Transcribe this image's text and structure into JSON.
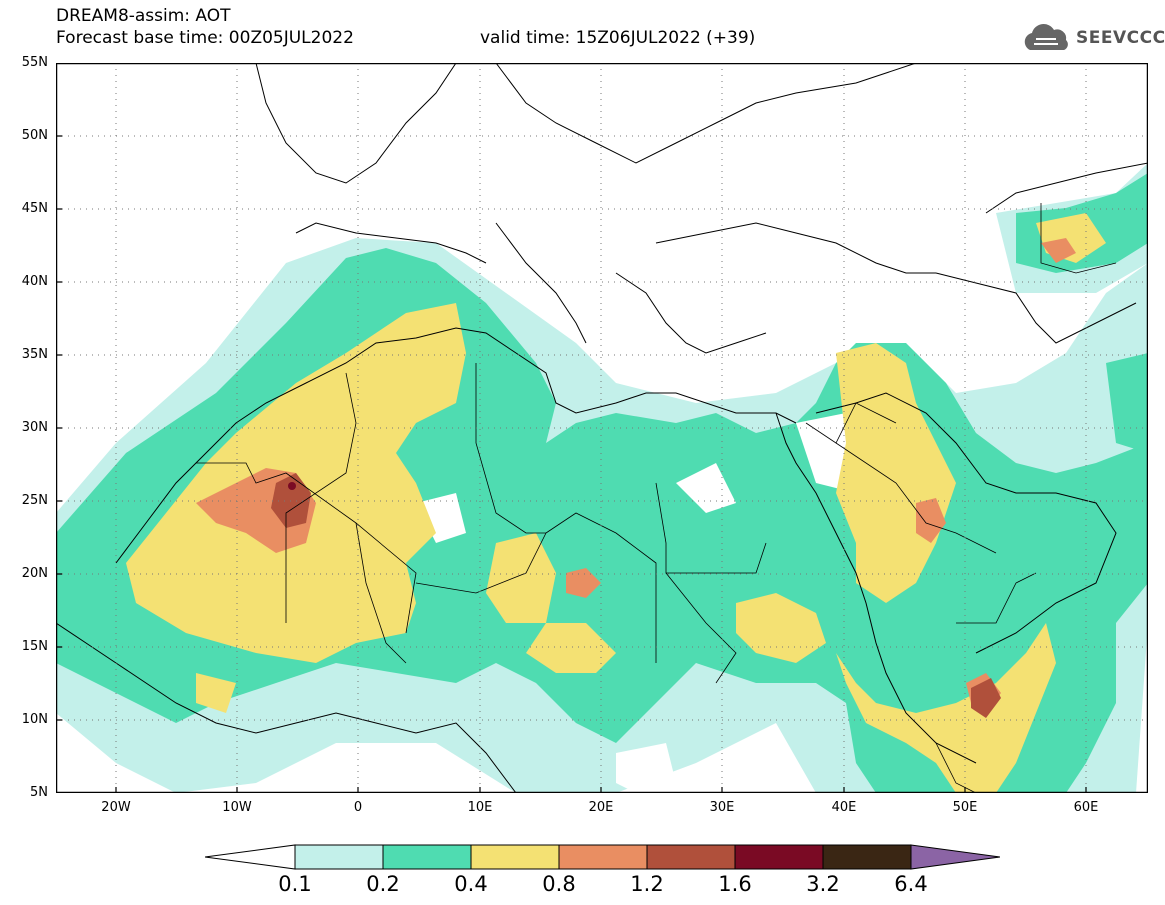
{
  "header": {
    "title": "DREAM8-assim: AOT",
    "base_time": "Forecast base time: 00Z05JUL2022",
    "valid_time": "valid time: 15Z06JUL2022 (+39)"
  },
  "logo": {
    "text": "SEEVCCC",
    "icon": "cloud-icon"
  },
  "map": {
    "lat_labels": [
      "55N",
      "50N",
      "45N",
      "40N",
      "35N",
      "30N",
      "25N",
      "20N",
      "15N",
      "10N",
      "5N"
    ],
    "lon_labels": [
      "20W",
      "10W",
      "0",
      "10E",
      "20E",
      "30E",
      "40E",
      "50E",
      "60E"
    ],
    "extent": {
      "lon": [
        -25,
        65
      ],
      "lat": [
        5,
        55
      ]
    }
  },
  "colorbar": {
    "levels": [
      "0.1",
      "0.2",
      "0.4",
      "0.8",
      "1.2",
      "1.6",
      "3.2",
      "6.4"
    ],
    "colors": [
      "#ffffff",
      "#c3f0ea",
      "#4fdcb1",
      "#f4e173",
      "#e98e62",
      "#b0503b",
      "#7a0a24",
      "#3a2614",
      "#8b64a5"
    ]
  }
}
